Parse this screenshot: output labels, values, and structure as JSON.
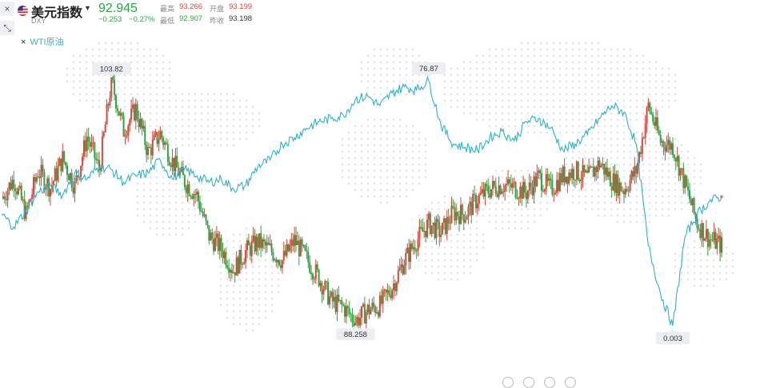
{
  "header": {
    "name": "美元指数",
    "code": "DXY",
    "price": "92.945",
    "change": "−0.253",
    "change_pct": "−0.27%",
    "high_label": "最高",
    "high": "93.266",
    "open_label": "开盘",
    "open": "93.199",
    "low_label": "最低",
    "low": "92.907",
    "prev_close_label": "昨收",
    "prev_close": "93.198"
  },
  "legend": {
    "remove": "×",
    "label": "WTI原油"
  },
  "side_buttons": {
    "close": "×",
    "collapse": "⤡"
  },
  "colors": {
    "up": "#e0433a",
    "down": "#2aa844",
    "overlay": "#2eb3c9",
    "map_dots": "#e6e6e6"
  },
  "chart_data": {
    "type": "line",
    "series": [
      {
        "name": "美元指数",
        "style": "candlestick",
        "values": [
          96.2,
          97.5,
          95.2,
          98.0,
          96.9,
          98.8,
          97.0,
          100.2,
          98.1,
          103.8,
          100.6,
          102.0,
          99.2,
          100.4,
          98.6,
          97.3,
          96.4,
          93.8,
          93.0,
          91.6,
          92.8,
          93.4,
          92.9,
          92.2,
          93.5,
          92.3,
          91.1,
          89.6,
          89.2,
          88.3,
          89.0,
          89.3,
          90.5,
          92.2,
          93.5,
          94.6,
          94.0,
          95.3,
          95.2,
          96.2,
          96.8,
          97.1,
          96.9,
          96.6,
          97.6,
          96.8,
          97.7,
          98.0,
          97.5,
          98.5,
          97.4,
          96.8,
          98.0,
          102.2,
          99.9,
          99.6,
          97.1,
          94.6,
          93.6,
          93.2
        ],
        "annotations": [
          {
            "label": "103.82"
          },
          {
            "label": "88.258"
          }
        ]
      },
      {
        "name": "WTI原油",
        "values": [
          35,
          31,
          36,
          42,
          44,
          41,
          48,
          46,
          50,
          49,
          45,
          47,
          48,
          52,
          46,
          49,
          47,
          45,
          46,
          43,
          44,
          50,
          52,
          57,
          59,
          62,
          64,
          65,
          66,
          71,
          72,
          69,
          73,
          75,
          74,
          76.87,
          63,
          57,
          56,
          55,
          59,
          61,
          58,
          64,
          65,
          62,
          55,
          57,
          60,
          65,
          69,
          67,
          57,
          25,
          10,
          0.003,
          28,
          35,
          39,
          40.5
        ],
        "annotations": [
          {
            "label": "76.87"
          },
          {
            "label": "0.003"
          }
        ]
      }
    ],
    "legend_position": "top-left",
    "grid": false
  }
}
